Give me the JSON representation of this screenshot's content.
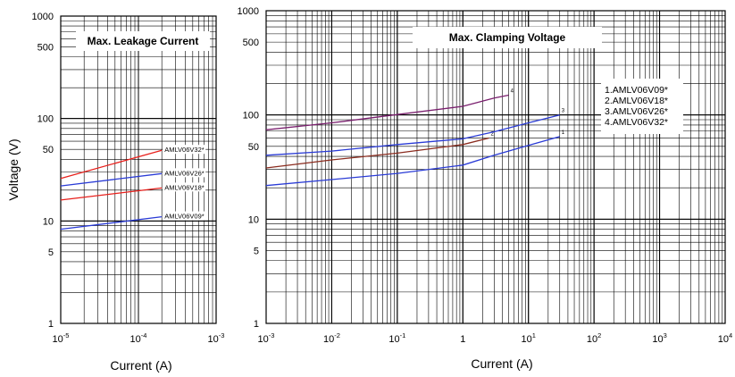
{
  "y_axis_label": "Voltage   (V)",
  "chart_data": [
    {
      "type": "line",
      "title": "Max. Leakage Current",
      "xlabel": "Current   (A)",
      "ylabel": "Voltage   (V)",
      "xscale": "log",
      "yscale": "log",
      "xlim": [
        1e-05,
        0.001
      ],
      "ylim": [
        1,
        1000
      ],
      "grid": true,
      "xticks": [
        {
          "value": 1e-05,
          "base": "10",
          "exp": "-5"
        },
        {
          "value": 0.0001,
          "base": "10",
          "exp": "-4"
        },
        {
          "value": 0.001,
          "base": "10",
          "exp": "-3"
        }
      ],
      "yticks": [
        {
          "value": 1,
          "label": "1"
        },
        {
          "value": 5,
          "label": "5"
        },
        {
          "value": 10,
          "label": "10"
        },
        {
          "value": 50,
          "label": "50"
        },
        {
          "value": 100,
          "label": "100"
        },
        {
          "value": 500,
          "label": "500"
        },
        {
          "value": 1000,
          "label": "1000"
        }
      ],
      "series": [
        {
          "name": "AMLV06V32*",
          "color": "#e8201c",
          "x": [
            1e-05,
            0.0002
          ],
          "y": [
            26,
            49
          ]
        },
        {
          "name": "AMLV06V26*",
          "color": "#2a3bd6",
          "x": [
            1e-05,
            0.0002
          ],
          "y": [
            22,
            29
          ]
        },
        {
          "name": "AMLV06V18*",
          "color": "#e8201c",
          "x": [
            1e-05,
            0.0002
          ],
          "y": [
            16,
            21
          ]
        },
        {
          "name": "AMLV06V09*",
          "color": "#2a3bd6",
          "x": [
            1e-05,
            0.0002
          ],
          "y": [
            8.3,
            11
          ]
        }
      ]
    },
    {
      "type": "line",
      "title": "Max. Clamping Voltage",
      "xlabel": "Current   (A)",
      "ylabel": "Voltage   (V)",
      "xscale": "log",
      "yscale": "log",
      "xlim": [
        0.001,
        10000
      ],
      "ylim": [
        1,
        1000
      ],
      "grid": true,
      "legend_position": "right",
      "legend": [
        "1.AMLV06V09*",
        "2.AMLV06V18*",
        "3.AMLV06V26*",
        "4.AMLV06V32*"
      ],
      "xticks": [
        {
          "value": 0.001,
          "base": "10",
          "exp": "-3"
        },
        {
          "value": 0.01,
          "base": "10",
          "exp": "-2"
        },
        {
          "value": 0.1,
          "base": "10",
          "exp": "-1"
        },
        {
          "value": 1,
          "base": "1",
          "exp": ""
        },
        {
          "value": 10,
          "base": "10",
          "exp": "1"
        },
        {
          "value": 100,
          "base": "10",
          "exp": "2"
        },
        {
          "value": 1000,
          "base": "10",
          "exp": "3"
        },
        {
          "value": 10000,
          "base": "10",
          "exp": "4"
        }
      ],
      "yticks": [
        {
          "value": 1,
          "label": "1"
        },
        {
          "value": 5,
          "label": "5"
        },
        {
          "value": 10,
          "label": "10"
        },
        {
          "value": 50,
          "label": "50"
        },
        {
          "value": 100,
          "label": "100"
        },
        {
          "value": 500,
          "label": "500"
        },
        {
          "value": 1000,
          "label": "1000"
        }
      ],
      "series": [
        {
          "name": "1",
          "color": "#2a3bd6",
          "x": [
            0.001,
            0.01,
            0.1,
            1,
            3,
            10,
            30
          ],
          "y": [
            21,
            24,
            27.5,
            33,
            41,
            51,
            62
          ]
        },
        {
          "name": "2",
          "color": "#8a2b1e",
          "x": [
            0.001,
            0.01,
            0.1,
            1,
            2.5
          ],
          "y": [
            31,
            37,
            43,
            52,
            60
          ]
        },
        {
          "name": "3",
          "color": "#2a3bd6",
          "x": [
            0.001,
            0.01,
            0.1,
            1,
            3,
            10,
            30
          ],
          "y": [
            41,
            45,
            52,
            59,
            69,
            84,
            100
          ]
        },
        {
          "name": "4",
          "color": "#7a1f6e",
          "x": [
            0.001,
            0.01,
            0.1,
            1,
            3,
            5
          ],
          "y": [
            72,
            84,
            101,
            121,
            145,
            155
          ]
        }
      ]
    }
  ]
}
